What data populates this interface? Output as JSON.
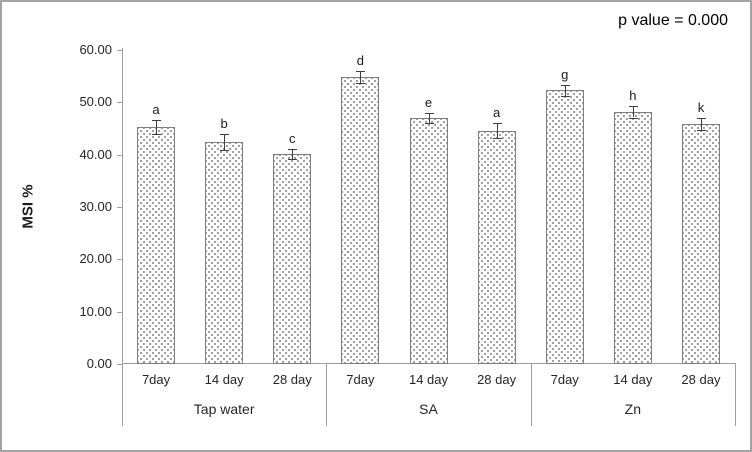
{
  "chart_data": {
    "type": "bar",
    "title": "",
    "ylabel": "MSI %",
    "xlabel": "",
    "ylim": [
      0,
      60
    ],
    "ytick_step": 10,
    "yticks": [
      "0.00",
      "10.00",
      "20.00",
      "30.00",
      "40.00",
      "50.00",
      "60.00"
    ],
    "annotation": "p value = 0.000",
    "legend": false,
    "grid": false,
    "bar_pattern": "gray-stipple-dots",
    "bar_border_color": "#7f7f7f",
    "axis_color": "#9e9e9e",
    "groups": [
      {
        "label": "Tap water",
        "categories": [
          "7day",
          "14 day",
          "28 day"
        ],
        "values": [
          45.3,
          42.4,
          40.1
        ],
        "errors": [
          1.3,
          1.6,
          1.0
        ],
        "letters": [
          "a",
          "b",
          "c"
        ]
      },
      {
        "label": "SA",
        "categories": [
          "7day",
          "14 day",
          "28 day"
        ],
        "values": [
          54.8,
          47.0,
          44.6
        ],
        "errors": [
          1.1,
          0.9,
          1.4
        ],
        "letters": [
          "d",
          "e",
          "a"
        ]
      },
      {
        "label": "Zn",
        "categories": [
          "7day",
          "14 day",
          "28 day"
        ],
        "values": [
          52.3,
          48.2,
          45.9
        ],
        "errors": [
          1.0,
          1.1,
          1.2
        ],
        "letters": [
          "g",
          "h",
          "k"
        ]
      }
    ]
  }
}
